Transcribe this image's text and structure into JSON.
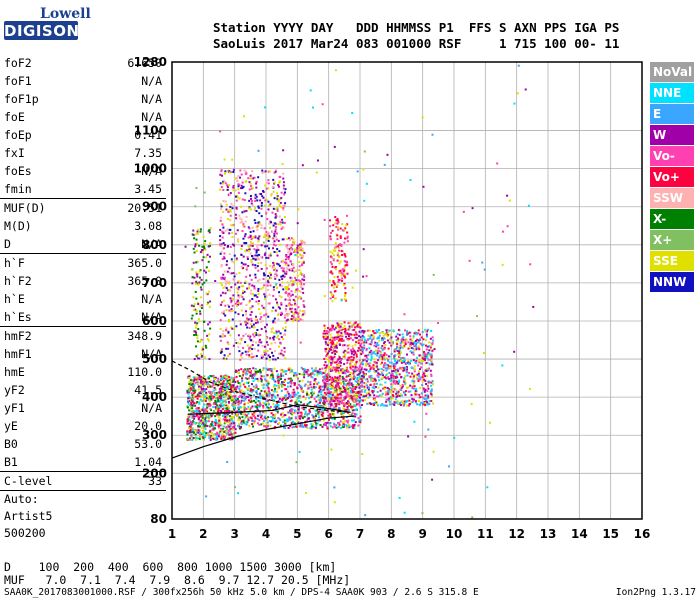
{
  "logo": {
    "top": "Lowell",
    "bottom": "DIGISONDE"
  },
  "header": {
    "line1": "Station YYYY DAY   DDD HHMMSS P1  FFS S AXN PPS IGA PS",
    "line2": "SaoLuis 2017 Mar24 083 001000 RSF     1 715 100 00- 11"
  },
  "params": {
    "group1": [
      {
        "label": "foF2",
        "value": "6.650"
      },
      {
        "label": "foF1",
        "value": "N/A"
      },
      {
        "label": "foF1p",
        "value": "N/A"
      },
      {
        "label": "foE",
        "value": "N/A"
      },
      {
        "label": "foEp",
        "value": "0.41"
      },
      {
        "label": "fxI",
        "value": "7.35"
      },
      {
        "label": "foEs",
        "value": "N/A"
      },
      {
        "label": "fmin",
        "value": "3.45"
      }
    ],
    "group2": [
      {
        "label": "MUF(D)",
        "value": "20.51"
      },
      {
        "label": "M(D)",
        "value": "3.08"
      },
      {
        "label": "D",
        "value": "N/A"
      }
    ],
    "group3": [
      {
        "label": "h`F",
        "value": "365.0"
      },
      {
        "label": "h`F2",
        "value": "365.0"
      },
      {
        "label": "h`E",
        "value": "N/A"
      },
      {
        "label": "h`Es",
        "value": "N/A"
      }
    ],
    "group4": [
      {
        "label": "hmF2",
        "value": "348.9"
      },
      {
        "label": "hmF1",
        "value": "N/A"
      },
      {
        "label": "hmE",
        "value": "110.0"
      },
      {
        "label": "yF2",
        "value": "41.5"
      },
      {
        "label": "yF1",
        "value": "N/A"
      },
      {
        "label": "yE",
        "value": "20.0"
      },
      {
        "label": "B0",
        "value": "53.0"
      },
      {
        "label": "B1",
        "value": "1.04"
      }
    ],
    "clevel": {
      "label": "C-level",
      "value": "33"
    },
    "auto": [
      "Auto:",
      "Artist5",
      "500200"
    ]
  },
  "bottom": {
    "line1": "D    100  200  400  600  800 1000 1500 3000 [km]",
    "line2": "MUF   7.0  7.1  7.4  7.9  8.6  9.7 12.7 20.5 [MHz]"
  },
  "footer": {
    "left": "SAA0K_2017083001000.RSF / 300fx256h 50 kHz 5.0 km / DPS-4 SAA0K 903 / 2.6 S 315.8 E",
    "right": "Ion2Png 1.3.17"
  },
  "legend": [
    {
      "label": "NoVal",
      "color": "#a0a0a0"
    },
    {
      "label": "NNE",
      "color": "#00e0ff"
    },
    {
      "label": "E",
      "color": "#3aa6ff"
    },
    {
      "label": "W",
      "color": "#a000a8"
    },
    {
      "label": "Vo-",
      "color": "#ff40b0"
    },
    {
      "label": "Vo+",
      "color": "#ff0040"
    },
    {
      "label": "SSW",
      "color": "#ffb0b0"
    },
    {
      "label": "X-",
      "color": "#008000"
    },
    {
      "label": "X+",
      "color": "#80c060"
    },
    {
      "label": "SSE",
      "color": "#e0e000"
    },
    {
      "label": "NNW",
      "color": "#1010c0"
    }
  ],
  "chart_data": {
    "type": "scatter",
    "title": "",
    "xlabel": "",
    "ylabel": "",
    "xlim": [
      1,
      16
    ],
    "ylim": [
      80,
      1280
    ],
    "xticks": [
      1,
      2,
      3,
      4,
      5,
      6,
      7,
      8,
      9,
      10,
      11,
      12,
      13,
      14,
      15,
      16
    ],
    "yticks": [
      80,
      200,
      300,
      400,
      500,
      600,
      700,
      800,
      900,
      1000,
      1100,
      1280
    ],
    "grid": true,
    "clusters": [
      {
        "x": [
          1.45,
          3.0
        ],
        "y": [
          290,
          460
        ],
        "n": 900,
        "colors": [
          "#e0e000",
          "#80c060",
          "#008000",
          "#ff0040",
          "#ff40b0",
          "#a000a8",
          "#00e0ff"
        ]
      },
      {
        "x": [
          3.0,
          7.0
        ],
        "y": [
          320,
          480
        ],
        "n": 1200,
        "colors": [
          "#e0e000",
          "#ff0040",
          "#ff40b0",
          "#a000a8",
          "#008000",
          "#00e0ff",
          "#3aa6ff"
        ]
      },
      {
        "x": [
          5.8,
          7.0
        ],
        "y": [
          380,
          600
        ],
        "n": 500,
        "colors": [
          "#e0e000",
          "#ff40b0",
          "#ff0040",
          "#a000a8"
        ]
      },
      {
        "x": [
          7.0,
          9.3
        ],
        "y": [
          380,
          580
        ],
        "n": 900,
        "colors": [
          "#ff40b0",
          "#a000a8",
          "#ff0040",
          "#00e0ff",
          "#3aa6ff",
          "#e0e000"
        ]
      },
      {
        "x": [
          1.6,
          2.2
        ],
        "y": [
          500,
          850
        ],
        "n": 150,
        "colors": [
          "#008000",
          "#a000a8",
          "#e0e000"
        ]
      },
      {
        "x": [
          2.5,
          4.6
        ],
        "y": [
          500,
          1000
        ],
        "n": 900,
        "colors": [
          "#ff40b0",
          "#a000a8",
          "#ffb0b0",
          "#e0e000",
          "#1010c0"
        ]
      },
      {
        "x": [
          4.6,
          5.2
        ],
        "y": [
          600,
          820
        ],
        "n": 250,
        "colors": [
          "#ff40b0",
          "#e0e000",
          "#a000a8",
          "#ffb0b0"
        ]
      },
      {
        "x": [
          6.0,
          6.6
        ],
        "y": [
          650,
          880
        ],
        "n": 150,
        "colors": [
          "#ff40b0",
          "#ff0040",
          "#e0e000"
        ]
      },
      {
        "x": [
          1.2,
          12.5
        ],
        "y": [
          80,
          1280
        ],
        "n": 120,
        "colors": [
          "#e0e000",
          "#00e0ff",
          "#a000a8",
          "#ff40b0",
          "#80c060",
          "#3aa6ff"
        ]
      }
    ],
    "profile_lines": [
      {
        "name": "",
        "x": [
          1.0,
          2.0,
          3.0,
          4.0,
          5.0,
          6.0,
          6.8
        ],
        "y": [
          240,
          270,
          295,
          315,
          330,
          345,
          350
        ]
      },
      {
        "name": "",
        "x": [
          1.0,
          1.6,
          2.2,
          3.0,
          4.0,
          5.0,
          6.0,
          6.7
        ],
        "y": [
          495,
          470,
          440,
          415,
          395,
          375,
          365,
          360
        ]
      },
      {
        "name": "",
        "x": [
          1.5,
          3.0,
          4.2,
          5.0,
          6.0,
          6.7
        ],
        "y": [
          355,
          360,
          365,
          380,
          370,
          360
        ]
      }
    ]
  }
}
